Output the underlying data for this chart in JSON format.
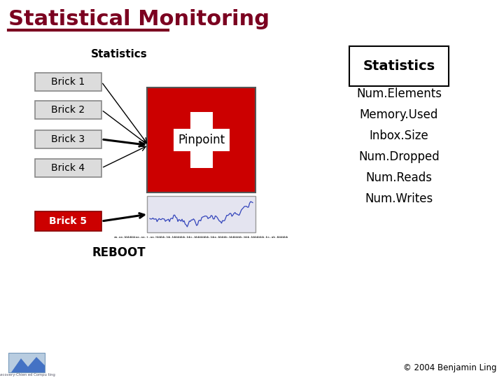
{
  "title": "Statistical Monitoring",
  "title_color": "#7B0020",
  "title_underline_color": "#7B0020",
  "bg_color": "#FFFFFF",
  "statistics_label": "Statistics",
  "bricks": [
    "Brick 1",
    "Brick 2",
    "Brick 3",
    "Brick 4"
  ],
  "brick5_label": "Brick 5",
  "brick5_bg": "#CC0000",
  "brick5_text_color": "#FFFFFF",
  "pinpoint_label": "Pinpoint",
  "pinpoint_bg": "#CC0000",
  "pinpoint_cross_color": "#FFFFFF",
  "right_title": "Statistics",
  "right_items": [
    "Num.Elements",
    "Memory.Used",
    "Inbox.Size",
    "Num.Dropped",
    "Num.Reads",
    "Num.Writes"
  ],
  "reboot_label": "REBOOT",
  "copyright": "© 2004 Benjamin Ling"
}
